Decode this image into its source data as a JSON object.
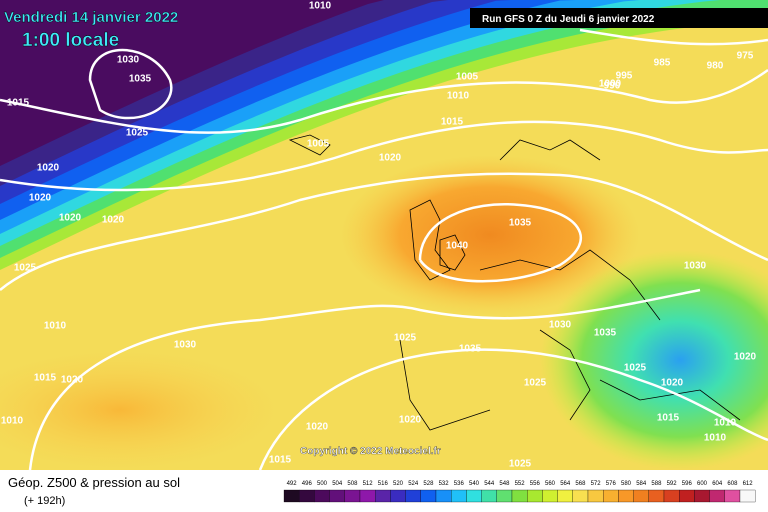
{
  "header": {
    "date": "Vendredi 14 janvier 2022",
    "time": "1:00 locale",
    "run": "Run GFS 0 Z du Jeudi 6 janvier 2022"
  },
  "copyright": "Copyright © 2022 Meteociel.fr",
  "footer": {
    "title": "Géop. Z500 & pression au sol",
    "lead": "(+ 192h)"
  },
  "colorbar": {
    "labels": [
      "492",
      "496",
      "500",
      "504",
      "508",
      "512",
      "516",
      "520",
      "524",
      "528",
      "532",
      "536",
      "540",
      "544",
      "548",
      "552",
      "556",
      "560",
      "564",
      "568",
      "572",
      "576",
      "580",
      "584",
      "588",
      "592",
      "596",
      "600",
      "604",
      "608",
      "612"
    ],
    "colors": [
      "#1e0a22",
      "#34083e",
      "#4c0a5c",
      "#62107a",
      "#7a1492",
      "#8e18aa",
      "#5a24a8",
      "#3a2cc0",
      "#2040d8",
      "#1060f0",
      "#1890f8",
      "#20c0f8",
      "#30e0e0",
      "#40e0a8",
      "#60e070",
      "#80e040",
      "#a8e830",
      "#d0f030",
      "#f0f040",
      "#f8e050",
      "#f8c840",
      "#f8b030",
      "#f89828",
      "#f08020",
      "#e86020",
      "#d84020",
      "#c02020",
      "#a81830",
      "#c02870",
      "#e050a0",
      "#f8f8f8"
    ]
  },
  "isobar_labels": [
    "1010",
    "1030",
    "1035",
    "1015",
    "1025",
    "1005",
    "1010",
    "1015",
    "1005",
    "1020",
    "1020",
    "1020",
    "1020",
    "1020",
    "1025",
    "1040",
    "1035",
    "1030",
    "1010",
    "1030",
    "1025",
    "1035",
    "1030",
    "1035",
    "1025",
    "1020",
    "1025",
    "1015",
    "1020",
    "1020",
    "1015",
    "1010",
    "1020",
    "1020",
    "1010",
    "1010",
    "1015",
    "1025",
    "985",
    "980",
    "975",
    "995",
    "990",
    "1000"
  ]
}
